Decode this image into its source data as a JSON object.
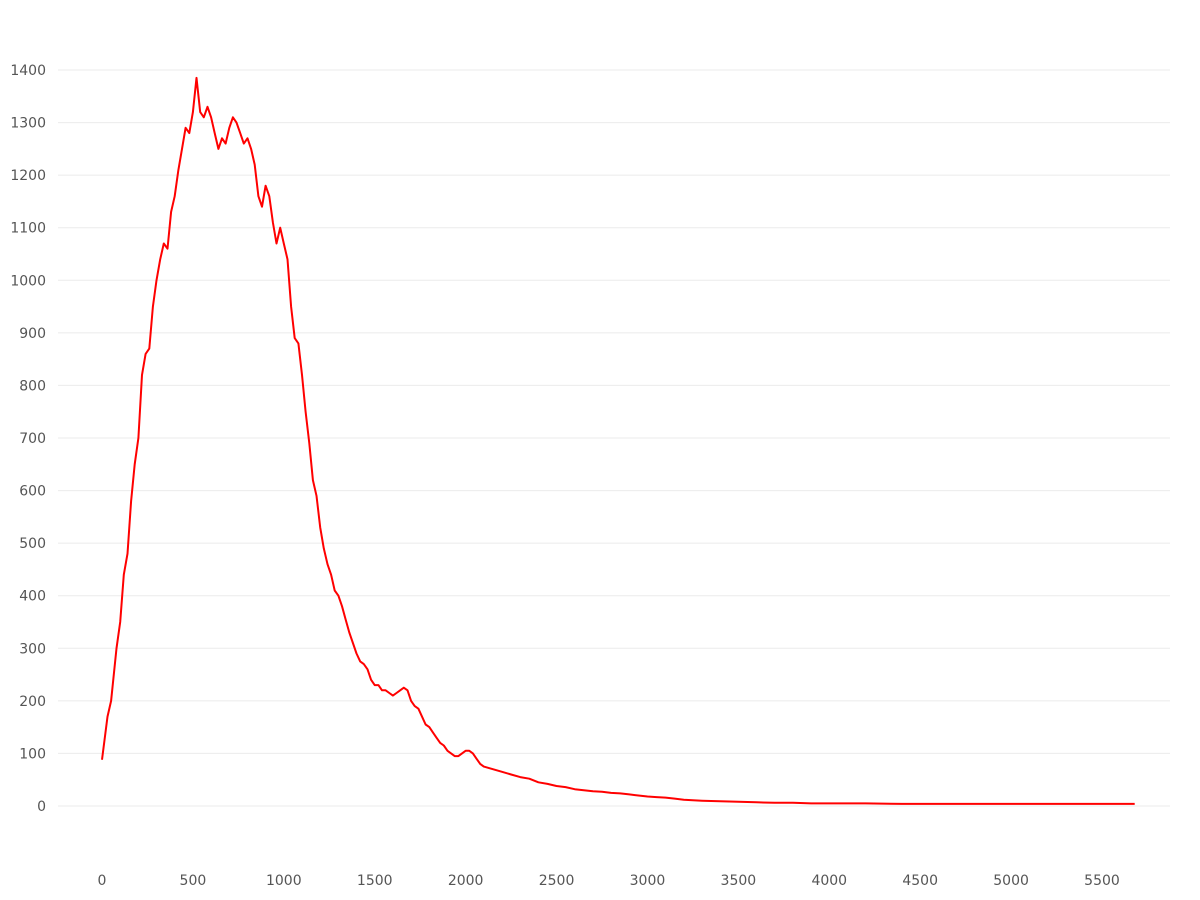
{
  "chart_data": {
    "type": "line",
    "title": "",
    "xlabel": "",
    "ylabel": "",
    "xlim": [
      0,
      5700
    ],
    "ylim": [
      0,
      1400
    ],
    "grid": true,
    "legend": "none",
    "x_ticks": [
      0,
      500,
      1000,
      1500,
      2000,
      2500,
      3000,
      3500,
      4000,
      4500,
      5000,
      5500
    ],
    "y_ticks": [
      0,
      100,
      200,
      300,
      400,
      500,
      600,
      700,
      800,
      900,
      1000,
      1100,
      1200,
      1300,
      1400
    ],
    "series": [
      {
        "color": "#ff0000",
        "points": [
          [
            0,
            88
          ],
          [
            30,
            170
          ],
          [
            50,
            200
          ],
          [
            80,
            300
          ],
          [
            100,
            350
          ],
          [
            120,
            440
          ],
          [
            140,
            480
          ],
          [
            160,
            580
          ],
          [
            180,
            650
          ],
          [
            200,
            700
          ],
          [
            220,
            820
          ],
          [
            240,
            860
          ],
          [
            260,
            870
          ],
          [
            280,
            950
          ],
          [
            300,
            1000
          ],
          [
            320,
            1040
          ],
          [
            340,
            1070
          ],
          [
            360,
            1060
          ],
          [
            380,
            1130
          ],
          [
            400,
            1160
          ],
          [
            420,
            1210
          ],
          [
            440,
            1250
          ],
          [
            460,
            1290
          ],
          [
            480,
            1280
          ],
          [
            500,
            1320
          ],
          [
            520,
            1385
          ],
          [
            540,
            1320
          ],
          [
            560,
            1310
          ],
          [
            580,
            1330
          ],
          [
            600,
            1310
          ],
          [
            620,
            1280
          ],
          [
            640,
            1250
          ],
          [
            660,
            1270
          ],
          [
            680,
            1260
          ],
          [
            700,
            1290
          ],
          [
            720,
            1310
          ],
          [
            740,
            1300
          ],
          [
            760,
            1280
          ],
          [
            780,
            1260
          ],
          [
            800,
            1270
          ],
          [
            820,
            1250
          ],
          [
            840,
            1220
          ],
          [
            860,
            1160
          ],
          [
            880,
            1140
          ],
          [
            900,
            1180
          ],
          [
            920,
            1160
          ],
          [
            940,
            1110
          ],
          [
            960,
            1070
          ],
          [
            980,
            1100
          ],
          [
            1000,
            1070
          ],
          [
            1020,
            1040
          ],
          [
            1040,
            950
          ],
          [
            1060,
            890
          ],
          [
            1080,
            880
          ],
          [
            1100,
            820
          ],
          [
            1120,
            750
          ],
          [
            1140,
            690
          ],
          [
            1160,
            620
          ],
          [
            1180,
            590
          ],
          [
            1200,
            530
          ],
          [
            1220,
            490
          ],
          [
            1240,
            460
          ],
          [
            1260,
            440
          ],
          [
            1280,
            410
          ],
          [
            1300,
            400
          ],
          [
            1320,
            380
          ],
          [
            1340,
            355
          ],
          [
            1360,
            330
          ],
          [
            1380,
            310
          ],
          [
            1400,
            290
          ],
          [
            1420,
            275
          ],
          [
            1440,
            270
          ],
          [
            1460,
            260
          ],
          [
            1480,
            240
          ],
          [
            1500,
            230
          ],
          [
            1520,
            230
          ],
          [
            1540,
            220
          ],
          [
            1560,
            220
          ],
          [
            1580,
            215
          ],
          [
            1600,
            210
          ],
          [
            1620,
            215
          ],
          [
            1640,
            220
          ],
          [
            1660,
            225
          ],
          [
            1680,
            220
          ],
          [
            1700,
            200
          ],
          [
            1720,
            190
          ],
          [
            1740,
            185
          ],
          [
            1760,
            170
          ],
          [
            1780,
            155
          ],
          [
            1800,
            150
          ],
          [
            1820,
            140
          ],
          [
            1840,
            130
          ],
          [
            1860,
            120
          ],
          [
            1880,
            115
          ],
          [
            1900,
            105
          ],
          [
            1920,
            100
          ],
          [
            1940,
            95
          ],
          [
            1960,
            95
          ],
          [
            1980,
            100
          ],
          [
            2000,
            105
          ],
          [
            2020,
            105
          ],
          [
            2040,
            100
          ],
          [
            2060,
            90
          ],
          [
            2080,
            80
          ],
          [
            2100,
            75
          ],
          [
            2150,
            70
          ],
          [
            2200,
            65
          ],
          [
            2250,
            60
          ],
          [
            2300,
            55
          ],
          [
            2350,
            52
          ],
          [
            2400,
            45
          ],
          [
            2450,
            42
          ],
          [
            2500,
            38
          ],
          [
            2550,
            36
          ],
          [
            2600,
            32
          ],
          [
            2650,
            30
          ],
          [
            2700,
            28
          ],
          [
            2750,
            27
          ],
          [
            2800,
            25
          ],
          [
            2850,
            24
          ],
          [
            2900,
            22
          ],
          [
            2950,
            20
          ],
          [
            3000,
            18
          ],
          [
            3050,
            17
          ],
          [
            3100,
            16
          ],
          [
            3150,
            14
          ],
          [
            3200,
            12
          ],
          [
            3300,
            10
          ],
          [
            3400,
            9
          ],
          [
            3500,
            8
          ],
          [
            3600,
            7
          ],
          [
            3700,
            6
          ],
          [
            3800,
            6
          ],
          [
            3900,
            5
          ],
          [
            4000,
            5
          ],
          [
            4200,
            5
          ],
          [
            4400,
            4
          ],
          [
            4600,
            4
          ],
          [
            4800,
            4
          ],
          [
            5000,
            4
          ],
          [
            5200,
            4
          ],
          [
            5400,
            4
          ],
          [
            5600,
            4
          ],
          [
            5680,
            4
          ]
        ]
      }
    ]
  }
}
